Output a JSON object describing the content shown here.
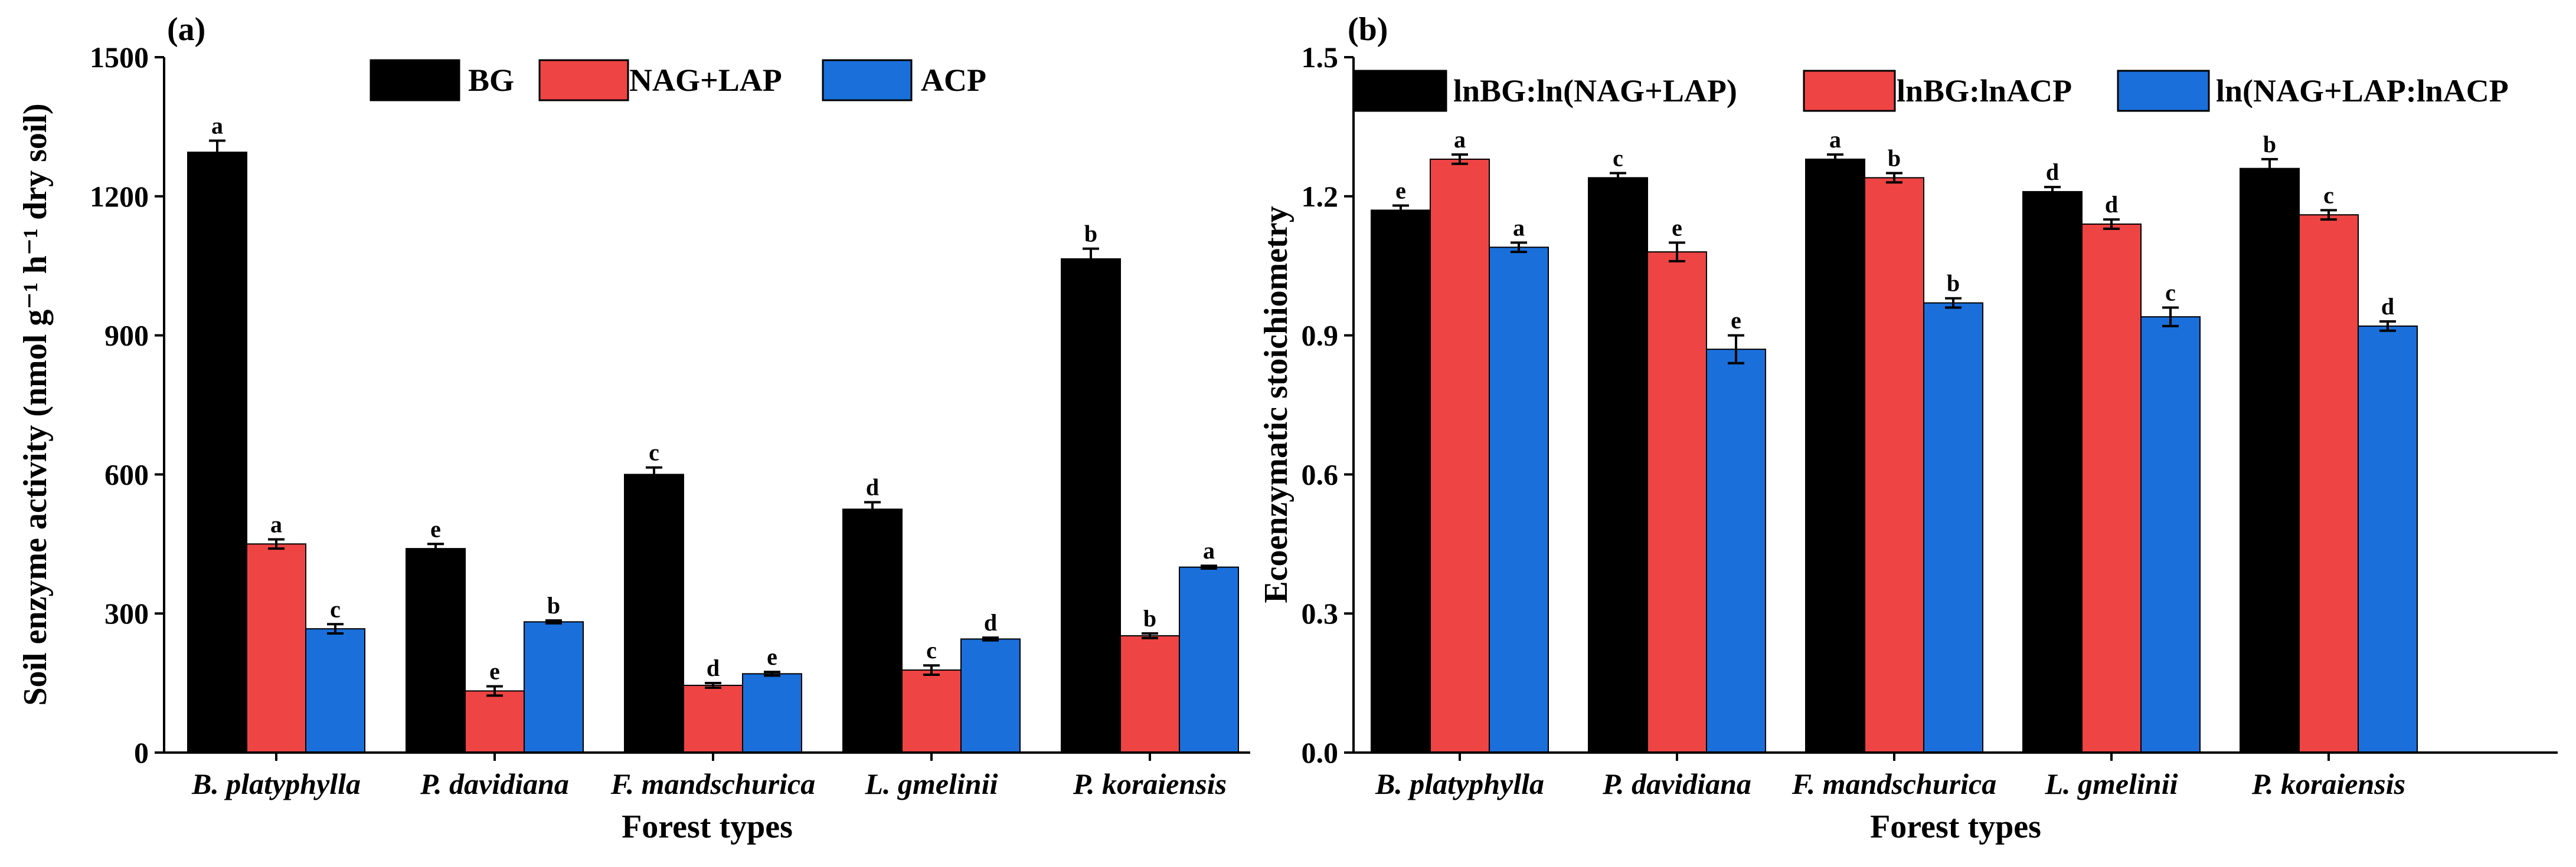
{
  "chart_data": [
    {
      "panel_label": "(a)",
      "type": "bar",
      "categories": [
        "B. platyphylla",
        "P. davidiana",
        "F. mandschurica",
        "L. gmelinii",
        "P. koraiensis"
      ],
      "series": [
        {
          "name": "BG",
          "color": "#000000",
          "values": [
            1295,
            440,
            600,
            525,
            1065
          ],
          "errors": [
            25,
            10,
            15,
            15,
            22
          ],
          "letters": [
            "a",
            "e",
            "c",
            "d",
            "b"
          ]
        },
        {
          "name": "NAG+LAP",
          "color": "#ee4444",
          "values": [
            450,
            133,
            145,
            178,
            252
          ],
          "errors": [
            10,
            10,
            5,
            10,
            5
          ],
          "letters": [
            "a",
            "e",
            "d",
            "c",
            "b"
          ]
        },
        {
          "name": "ACP",
          "color": "#1a6fdb",
          "values": [
            267,
            282,
            170,
            245,
            400
          ],
          "errors": [
            10,
            3,
            4,
            3,
            3
          ],
          "letters": [
            "c",
            "b",
            "e",
            "d",
            "a"
          ]
        }
      ],
      "ylim": [
        0,
        1500
      ],
      "yticks": [
        0,
        300,
        600,
        900,
        1200,
        1500
      ],
      "ytick_labels": [
        "0",
        "300",
        "600",
        "900",
        "1200",
        "1500"
      ],
      "xlabel": "Forest types",
      "ylabel": "Soil enzyme activity (nmol g⁻¹ h⁻¹ dry soil)",
      "legend_position": "top-right"
    },
    {
      "panel_label": "(b)",
      "type": "bar",
      "categories": [
        "B. platyphylla",
        "P. davidiana",
        "F. mandschurica",
        "L. gmelinii",
        "P. koraiensis"
      ],
      "series": [
        {
          "name": "lnBG:ln(NAG+LAP)",
          "color": "#000000",
          "values": [
            1.17,
            1.24,
            1.28,
            1.21,
            1.26
          ],
          "errors": [
            0.01,
            0.01,
            0.01,
            0.01,
            0.02
          ],
          "letters": [
            "e",
            "c",
            "a",
            "d",
            "b"
          ]
        },
        {
          "name": "lnBG:lnACP",
          "color": "#ee4444",
          "values": [
            1.28,
            1.08,
            1.24,
            1.14,
            1.16
          ],
          "errors": [
            0.01,
            0.02,
            0.01,
            0.01,
            0.01
          ],
          "letters": [
            "a",
            "e",
            "b",
            "d",
            "c"
          ]
        },
        {
          "name": "ln(NAG+LAP:lnACP",
          "color": "#1a6fdb",
          "values": [
            1.09,
            0.87,
            0.97,
            0.94,
            0.92
          ],
          "errors": [
            0.01,
            0.03,
            0.01,
            0.02,
            0.01
          ],
          "letters": [
            "a",
            "e",
            "b",
            "c",
            "d"
          ]
        }
      ],
      "ylim": [
        0,
        1.5
      ],
      "yticks": [
        0,
        0.3,
        0.6,
        0.9,
        1.2,
        1.5
      ],
      "ytick_labels": [
        "0.0",
        "0.3",
        "0.6",
        "0.9",
        "1.2",
        "1.5"
      ],
      "xlabel": "Forest types",
      "ylabel": "Ecoenzymatic stoichiometry",
      "legend_position": "top"
    }
  ]
}
